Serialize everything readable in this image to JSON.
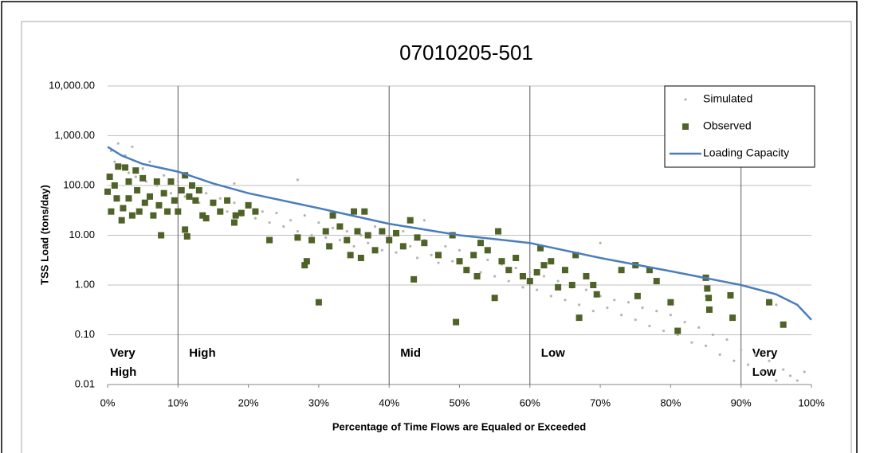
{
  "chart_data": {
    "type": "scatter",
    "title": "07010205-501",
    "x_label": "Percentage of Time Flows are Equaled or Exceeded",
    "y_label": "TSS Load (tons/day)",
    "yscale": "log",
    "xlim": [
      0,
      100
    ],
    "ylim": [
      0.01,
      10000
    ],
    "xticks": [
      {
        "value": 0,
        "label": "0%"
      },
      {
        "value": 10,
        "label": "10%"
      },
      {
        "value": 20,
        "label": "20%"
      },
      {
        "value": 30,
        "label": "30%"
      },
      {
        "value": 40,
        "label": "40%"
      },
      {
        "value": 50,
        "label": "50%"
      },
      {
        "value": 60,
        "label": "60%"
      },
      {
        "value": 70,
        "label": "70%"
      },
      {
        "value": 80,
        "label": "80%"
      },
      {
        "value": 90,
        "label": "90%"
      },
      {
        "value": 100,
        "label": "100%"
      }
    ],
    "yticks": [
      {
        "value": 10000,
        "label": "10,000.00"
      },
      {
        "value": 1000,
        "label": "1,000.00"
      },
      {
        "value": 100,
        "label": "100.00"
      },
      {
        "value": 10,
        "label": "10.00"
      },
      {
        "value": 1,
        "label": "1.00"
      },
      {
        "value": 0.1,
        "label": "0.10"
      },
      {
        "value": 0.01,
        "label": "0.01"
      }
    ],
    "grid": true,
    "legend": "upper right",
    "zones": [
      {
        "label": [
          "Very",
          "High"
        ],
        "from": 0
      },
      {
        "label": [
          "High"
        ],
        "from": 10
      },
      {
        "label": [
          "Mid"
        ],
        "from": 40
      },
      {
        "label": [
          "Low"
        ],
        "from": 60
      },
      {
        "label": [
          "Very",
          "Low"
        ],
        "from": 90
      }
    ],
    "series": [
      {
        "name": "Simulated",
        "mark": "dot",
        "color": "#b4b4b4",
        "x": [
          0.5,
          1,
          1.5,
          2,
          2.5,
          3,
          3.5,
          4,
          5,
          5.5,
          6,
          7,
          8,
          9,
          10,
          11,
          12,
          13,
          14,
          15,
          16,
          17,
          18,
          19,
          20,
          21,
          22,
          23,
          24,
          25,
          26,
          27,
          28,
          29,
          30,
          31,
          32,
          33,
          34,
          35,
          36,
          37,
          38,
          39,
          40,
          41,
          42,
          43,
          44,
          45,
          46,
          47,
          48,
          49,
          50,
          51,
          52,
          53,
          54,
          55,
          56,
          57,
          58,
          59,
          60,
          61,
          62,
          63,
          64,
          65,
          66,
          67,
          68,
          69,
          70,
          71,
          72,
          73,
          74,
          75,
          76,
          77,
          78,
          79,
          80,
          81,
          82,
          83,
          84,
          85,
          86,
          87,
          88,
          89,
          90,
          91,
          92,
          93,
          94,
          95,
          96,
          97,
          98,
          99,
          27,
          18,
          45,
          70,
          85,
          95
        ],
        "values": [
          500,
          300,
          700,
          250,
          400,
          180,
          600,
          150,
          220,
          120,
          300,
          100,
          160,
          70,
          120,
          60,
          90,
          45,
          70,
          40,
          55,
          30,
          45,
          25,
          38,
          22,
          30,
          18,
          28,
          15,
          20,
          12,
          25,
          10,
          18,
          9,
          14,
          8,
          12,
          6,
          10,
          7,
          15,
          5,
          9,
          4.5,
          12,
          6,
          3.5,
          8,
          4,
          2.8,
          6,
          3,
          5,
          2.2,
          4,
          1.8,
          3.2,
          1.5,
          2.6,
          1.2,
          2.2,
          0.9,
          1.8,
          0.8,
          1.5,
          0.6,
          1.2,
          0.5,
          0.9,
          0.4,
          0.8,
          0.3,
          0.6,
          0.35,
          0.5,
          0.25,
          0.45,
          0.2,
          0.35,
          0.15,
          0.3,
          0.12,
          0.25,
          0.1,
          0.18,
          0.07,
          0.14,
          0.06,
          0.1,
          0.04,
          0.08,
          0.03,
          0.05,
          0.025,
          0.04,
          0.018,
          0.03,
          0.012,
          0.02,
          0.015,
          0.012,
          0.018,
          130,
          110,
          20,
          7,
          0.6,
          0.4
        ]
      },
      {
        "name": "Observed",
        "mark": "square",
        "color": "#4f6228",
        "x": [
          0,
          0.3,
          0.5,
          1,
          1.3,
          1.5,
          2,
          2.2,
          2.5,
          3,
          3,
          3.5,
          4,
          4.2,
          4.5,
          5,
          5.3,
          6,
          6.5,
          7,
          7.3,
          7.6,
          8,
          8.5,
          9,
          9.5,
          10,
          10.5,
          11,
          11,
          11.3,
          11.6,
          12,
          12.5,
          13,
          13.5,
          14,
          15,
          16,
          17,
          18,
          18.2,
          19,
          20,
          21,
          23,
          27,
          28,
          28.3,
          29,
          30,
          31,
          31.5,
          32,
          33,
          34,
          34.5,
          35,
          35.5,
          36,
          36.5,
          37,
          38,
          39,
          40,
          41,
          42,
          43,
          43.5,
          44,
          45,
          47,
          49,
          49.5,
          50,
          51,
          52,
          52.5,
          53,
          54,
          55,
          55.5,
          56,
          57,
          58,
          59,
          60,
          61,
          61.5,
          62,
          63,
          64,
          65,
          66,
          66.5,
          67,
          68,
          69,
          69.5,
          73,
          75,
          75.3,
          77,
          78,
          80,
          81,
          85,
          85.2,
          85.4,
          85.5,
          88.5,
          88.8,
          94,
          96
        ],
        "values": [
          75,
          150,
          30,
          100,
          55,
          240,
          20,
          35,
          230,
          120,
          55,
          25,
          200,
          80,
          30,
          140,
          45,
          60,
          25,
          120,
          40,
          10,
          70,
          30,
          120,
          50,
          30,
          80,
          160,
          13,
          9.5,
          60,
          100,
          50,
          80,
          25,
          22,
          45,
          30,
          50,
          18,
          25,
          28,
          40,
          30,
          8,
          9,
          2.5,
          3,
          8,
          0.45,
          12,
          6,
          25,
          15,
          8,
          4,
          30,
          12,
          3.5,
          30,
          10,
          5,
          12,
          8,
          11,
          6,
          20,
          1.3,
          9,
          7,
          4,
          10,
          0.18,
          3,
          2,
          4,
          1.5,
          7,
          5,
          0.55,
          12,
          3,
          2,
          3.5,
          1.5,
          1.2,
          1.8,
          5.5,
          2.5,
          3,
          0.9,
          2,
          1,
          4,
          0.22,
          1.5,
          1,
          0.65,
          2,
          2.5,
          0.6,
          2,
          1.2,
          0.45,
          0.12,
          1.4,
          0.85,
          0.55,
          0.32,
          0.62,
          0.22,
          0.45,
          0.16
        ]
      },
      {
        "name": "Loading Capacity",
        "mark": "line",
        "color": "#4a7ebb",
        "x": [
          0,
          2,
          5,
          10,
          15,
          20,
          30,
          40,
          50,
          60,
          70,
          80,
          90,
          95,
          98,
          100
        ],
        "values": [
          600,
          400,
          270,
          190,
          110,
          70,
          35,
          17,
          10,
          7,
          3.5,
          1.9,
          1,
          0.65,
          0.4,
          0.2
        ]
      }
    ]
  }
}
